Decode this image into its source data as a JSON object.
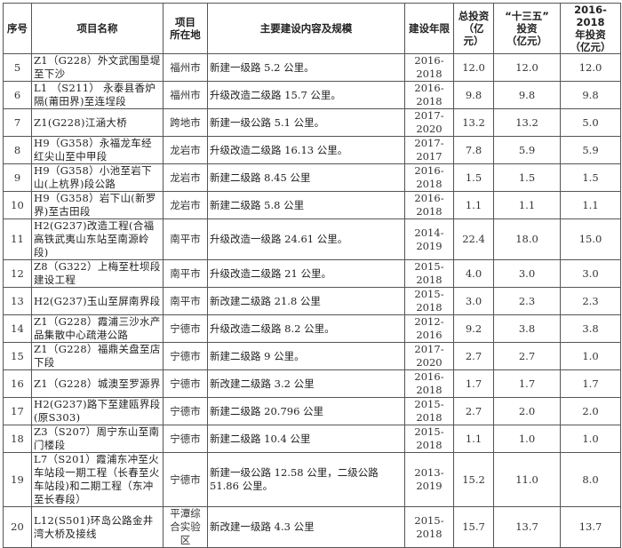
{
  "headers": [
    "序号",
    "项目名称",
    "项目\n所在地",
    "主要建设内容及规模",
    "建设年限",
    "总投资\n（亿元）",
    "“十三五”\n投资\n（亿元）",
    "2016-2018\n年投资\n（亿元）"
  ],
  "rows": [
    {
      "no": "5",
      "name": "Z1（G228）外文武围垦堤至下沙",
      "loc": "福州市",
      "content": "新建一级路 5.2 公里。",
      "years": "2016-2018",
      "total": "12.0",
      "plan13": "12.0",
      "y1618": "12.0"
    },
    {
      "no": "6",
      "name": "L1 （S211） 永泰县香炉隔(莆田界)至连埕段",
      "loc": "福州市",
      "content": "升级改造二级路 15.7 公里。",
      "years": "2016-2018",
      "total": "9.8",
      "plan13": "9.8",
      "y1618": "9.8"
    },
    {
      "no": "7",
      "name": "Z1(G228)江涵大桥",
      "loc": "跨地市",
      "content": "新建一级公路 5.1 公里。",
      "years": "2017-2020",
      "total": "13.2",
      "plan13": "13.2",
      "y1618": "5.0"
    },
    {
      "no": "8",
      "name": "H9（G358）永福龙车经红尖山至中甲段",
      "loc": "龙岩市",
      "content": "升级改造二级路 16.13 公里。",
      "years": "2017-2017",
      "total": "7.8",
      "plan13": "5.9",
      "y1618": "5.9"
    },
    {
      "no": "9",
      "name": "H9（G358）小池至岩下山(上杭界)段公路",
      "loc": "龙岩市",
      "content": "新建二级路 8.45 公里",
      "years": "2016-2018",
      "total": "1.5",
      "plan13": "1.5",
      "y1618": "1.5"
    },
    {
      "no": "10",
      "name": "H9（G358）岩下山(新罗界)至古田段",
      "loc": "龙岩市",
      "content": "新建二级路 5.8 公里",
      "years": "2016-2018",
      "total": "1.1",
      "plan13": "1.1",
      "y1618": "1.1"
    },
    {
      "no": "11",
      "name": "H2(G237)改造工程(合福高铁武夷山东站至南源岭段)",
      "loc": "南平市",
      "content": "升级改造一级路 24.61 公里。",
      "years": "2014-2019",
      "total": "22.4",
      "plan13": "18.0",
      "y1618": "15.0"
    },
    {
      "no": "12",
      "name": "Z8（G322）上梅至杜坝段建设工程",
      "loc": "南平市",
      "content": "升级改造二级路 21 公里。",
      "years": "2015-2018",
      "total": "4.0",
      "plan13": "3.0",
      "y1618": "3.0"
    },
    {
      "no": "13",
      "name": "H2(G237)玉山至屏南界段",
      "loc": "南平市",
      "content": "新改建二级路 21.8 公里",
      "years": "2015-2018",
      "total": "3.0",
      "plan13": "2.3",
      "y1618": "2.3"
    },
    {
      "no": "14",
      "name": "Z1（G228）霞浦三沙水产品集散中心疏港公路",
      "loc": "宁德市",
      "content": "升级改造二级路 8.2 公里。",
      "years": "2012-2016",
      "total": "9.2",
      "plan13": "3.8",
      "y1618": "3.8"
    },
    {
      "no": "15",
      "name": "Z1（G228）福鼎关盘至店下段",
      "loc": "宁德市",
      "content": "新建二级路 9 公里。",
      "years": "2017-2020",
      "total": "2.7",
      "plan13": "2.7",
      "y1618": "1.0"
    },
    {
      "no": "16",
      "name": "Z1（G228）城澳至罗源界",
      "loc": "宁德市",
      "content": "新改建二级路 3.2 公里",
      "years": "2016-2018",
      "total": "1.7",
      "plan13": "1.7",
      "y1618": "1.7"
    },
    {
      "no": "17",
      "name": "H2(G237)路下至建瓯界段(原S303)",
      "loc": "宁德市",
      "content": "新建二级路 20.796 公里",
      "years": "2015-2018",
      "total": "2.7",
      "plan13": "2.0",
      "y1618": "2.0"
    },
    {
      "no": "18",
      "name": "Z3（S207）周宁东山至南门楼段",
      "loc": "宁德市",
      "content": "新建二级路 10.4 公里",
      "years": "2015-2018",
      "total": "1.1",
      "plan13": "1.0",
      "y1618": "1.0"
    },
    {
      "no": "19",
      "name": "L7（S201）霞浦东冲至火车站段一期工程（长春至火车站段)和二期工程（东冲至长春段）",
      "loc": "宁德市",
      "content": "新建一级公路 12.58 公里，二级公路 51.86 公里。",
      "years": "2013-2019",
      "total": "15.2",
      "plan13": "11.0",
      "y1618": "8.0"
    },
    {
      "no": "20",
      "name": "L12(S501)环岛公路金井湾大桥及接线",
      "loc": "平潭综合实验区",
      "content": "新改建一级路 4.3 公里",
      "years": "2015-2018",
      "total": "15.7",
      "plan13": "13.7",
      "y1618": "13.7"
    }
  ]
}
